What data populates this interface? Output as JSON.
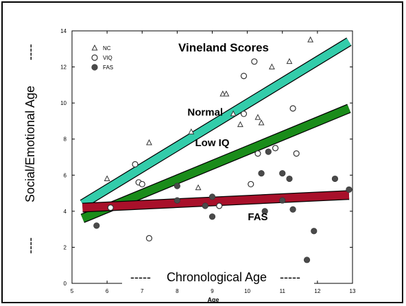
{
  "chart_data": {
    "type": "scatter",
    "title": "Vineland Scores",
    "xlabel": "Age",
    "ylabel": "Social/Emotional Age",
    "xlabel_overlay": "Chronological Age",
    "xlim": [
      5,
      13
    ],
    "ylim": [
      0,
      14
    ],
    "x_ticks": [
      "5",
      "6",
      "7",
      "8",
      "9",
      "10",
      "11",
      "12",
      "13"
    ],
    "y_ticks": [
      "0",
      "2",
      "4",
      "6",
      "8",
      "10",
      "12",
      "14"
    ],
    "legend": {
      "placement": "top-left",
      "entries": [
        {
          "marker": "triangle",
          "label": "NC"
        },
        {
          "marker": "open-circle",
          "label": "VIQ"
        },
        {
          "marker": "filled-circle",
          "label": "FAS"
        }
      ]
    },
    "series": [
      {
        "name": "NC",
        "marker": "triangle",
        "points": [
          [
            6.0,
            5.8
          ],
          [
            7.2,
            7.8
          ],
          [
            8.4,
            8.4
          ],
          [
            8.6,
            5.3
          ],
          [
            9.3,
            10.5
          ],
          [
            9.4,
            10.5
          ],
          [
            9.6,
            9.4
          ],
          [
            9.8,
            8.8
          ],
          [
            10.3,
            9.2
          ],
          [
            10.4,
            8.9
          ],
          [
            10.7,
            12.0
          ],
          [
            11.2,
            12.3
          ],
          [
            11.8,
            13.5
          ]
        ]
      },
      {
        "name": "VIQ",
        "marker": "open-circle",
        "points": [
          [
            6.1,
            4.2
          ],
          [
            6.8,
            6.6
          ],
          [
            6.9,
            5.6
          ],
          [
            7.0,
            5.5
          ],
          [
            7.2,
            2.5
          ],
          [
            9.2,
            4.3
          ],
          [
            9.9,
            11.5
          ],
          [
            9.9,
            9.4
          ],
          [
            10.1,
            5.5
          ],
          [
            10.2,
            12.3
          ],
          [
            10.3,
            7.2
          ],
          [
            10.8,
            7.5
          ],
          [
            11.3,
            9.7
          ],
          [
            11.4,
            7.2
          ]
        ]
      },
      {
        "name": "FAS",
        "marker": "filled-circle",
        "points": [
          [
            5.7,
            3.2
          ],
          [
            8.0,
            5.4
          ],
          [
            8.0,
            4.6
          ],
          [
            8.8,
            4.3
          ],
          [
            9.0,
            4.8
          ],
          [
            9.0,
            3.7
          ],
          [
            10.4,
            6.1
          ],
          [
            10.5,
            4.0
          ],
          [
            10.6,
            7.3
          ],
          [
            11.0,
            6.1
          ],
          [
            11.0,
            4.6
          ],
          [
            11.2,
            5.8
          ],
          [
            11.3,
            4.1
          ],
          [
            11.7,
            1.3
          ],
          [
            11.9,
            2.9
          ],
          [
            12.5,
            5.8
          ],
          [
            12.9,
            5.2
          ]
        ]
      }
    ],
    "trend_bands": [
      {
        "label": "Normal",
        "color": "#33ccaa",
        "x1": 5.3,
        "y1": 4.4,
        "x2": 12.9,
        "y2": 13.4
      },
      {
        "label": "Low IQ",
        "color": "#1a8c1a",
        "x1": 5.3,
        "y1": 3.6,
        "x2": 12.9,
        "y2": 9.7
      },
      {
        "label": "FAS",
        "color": "#a8102a",
        "x1": 5.3,
        "y1": 4.2,
        "x2": 12.9,
        "y2": 4.9
      }
    ],
    "band_label_positions": [
      {
        "label": "Normal",
        "x": 8.8,
        "y": 9.3
      },
      {
        "label": "Low IQ",
        "x": 9.0,
        "y": 7.6
      },
      {
        "label": "FAS",
        "x": 10.3,
        "y": 3.5
      }
    ]
  }
}
